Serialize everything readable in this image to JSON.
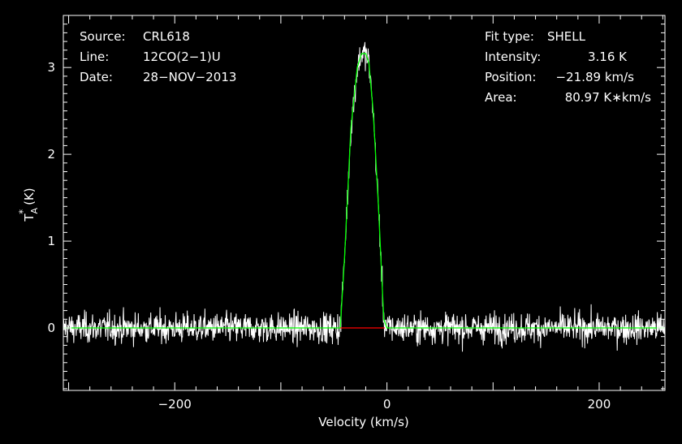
{
  "chart_data": {
    "type": "line",
    "xlabel": "Velocity (km/s)",
    "ylabel": "T_A^* (K)",
    "ylabel_main": "T",
    "ylabel_sub": "A",
    "ylabel_sup": "*",
    "ylabel_unit": "(K)",
    "xlim": [
      -305,
      262
    ],
    "ylim": [
      -0.72,
      3.6
    ],
    "x_ticks": [
      -200,
      0,
      200
    ],
    "x_tick_labels": [
      "−200",
      "0",
      "200"
    ],
    "y_ticks": [
      0,
      1,
      2,
      3
    ],
    "y_tick_labels": [
      "0",
      "1",
      "2",
      "3"
    ],
    "grid": false,
    "series": [
      {
        "role": "spectrum",
        "color": "#ffffff",
        "noise_rms": 0.12,
        "baseline": 0.0
      },
      {
        "role": "fit",
        "color": "#00ff00",
        "profile": "SHELL",
        "peak": 3.16,
        "center": -21.89,
        "x": [
          -305,
          -44,
          -40,
          -34,
          -28,
          -24,
          -20,
          -17,
          -13,
          -8,
          -3,
          0,
          262
        ],
        "y": [
          0,
          0,
          0.8,
          2.3,
          3.0,
          3.16,
          3.16,
          3.05,
          2.5,
          1.4,
          0.1,
          0,
          0
        ]
      },
      {
        "role": "window",
        "color": "#ff0000",
        "x": [
          -44,
          -2
        ],
        "y": [
          0,
          0
        ]
      }
    ],
    "annotations_left": [
      {
        "key": "Source:",
        "value": "CRL618"
      },
      {
        "key": "Line:",
        "value": "12CO(2−1)U"
      },
      {
        "key": "Date:",
        "value": "28−NOV−2013"
      }
    ],
    "annotations_right": [
      {
        "key": "Fit type:",
        "value": "SHELL"
      },
      {
        "key": "Intensity:",
        "value": "3.16 K"
      },
      {
        "key": "Position:",
        "value": "−21.89 km/s"
      },
      {
        "key": "Area:",
        "value": "80.97 K∗km/s"
      }
    ]
  }
}
